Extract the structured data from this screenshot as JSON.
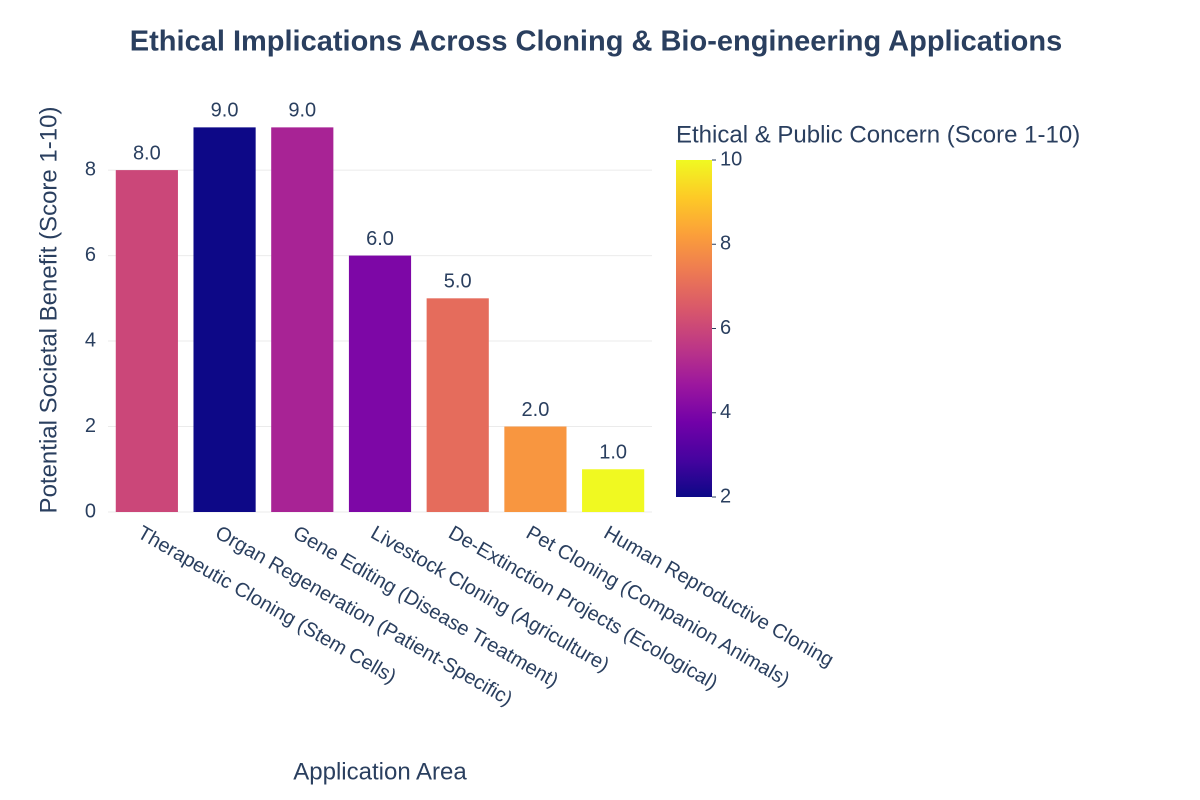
{
  "chart_data": {
    "type": "bar",
    "title": "Ethical Implications Across Cloning & Bio-engineering Applications",
    "x_label": "Application Area",
    "y_label": "Potential Societal Benefit (Score 1-10)",
    "categories": [
      "Therapeutic Cloning (Stem Cells)",
      "Organ Regeneration (Patient-Specific)",
      "Gene Editing (Disease Treatment)",
      "Livestock Cloning (Agriculture)",
      "De-Extinction Projects (Ecological)",
      "Pet Cloning (Companion Animals)",
      "Human Reproductive Cloning"
    ],
    "values": [
      8,
      9,
      9,
      6,
      5,
      2,
      1
    ],
    "value_labels": [
      "8.0",
      "9.0",
      "9.0",
      "6.0",
      "5.0",
      "2.0",
      "1.0"
    ],
    "color_values": [
      6,
      2,
      5,
      4,
      7,
      8,
      10
    ],
    "colorbar_title": "Ethical & Public Concern (Score 1-10)",
    "clim": [
      2,
      10
    ],
    "cticks": [
      2,
      4,
      6,
      8,
      10
    ],
    "colorscale": [
      "#0d0887",
      "#46039f",
      "#7201a8",
      "#9c179e",
      "#bd3786",
      "#d8576b",
      "#ed7953",
      "#fb9f3a",
      "#fdca26",
      "#f0f921"
    ],
    "ylim": [
      0,
      9.5
    ],
    "yticks": [
      0,
      2,
      4,
      6,
      8
    ],
    "grid": true
  }
}
